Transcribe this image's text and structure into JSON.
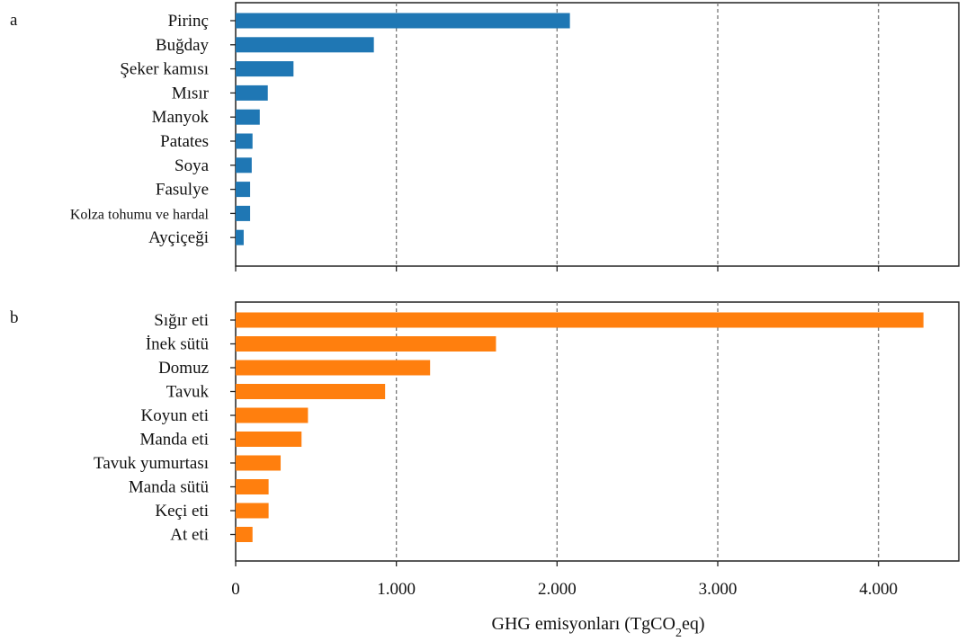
{
  "chart_data": [
    {
      "type": "bar",
      "orientation": "horizontal",
      "panel_label": "a",
      "categories": [
        "Pirinç",
        "Buğday",
        "Şeker kamısı",
        "Mısır",
        "Manyok",
        "Patates",
        "Soya",
        "Fasulye",
        "Kolza tohumu ve hardal",
        "Ayçiçeği"
      ],
      "values": [
        2080,
        860,
        360,
        200,
        150,
        105,
        100,
        90,
        90,
        50
      ],
      "bar_color": "#1f77b4",
      "xlim": [
        0,
        4500
      ],
      "grid": "vertical dashed at major ticks"
    },
    {
      "type": "bar",
      "orientation": "horizontal",
      "panel_label": "b",
      "categories": [
        "Sığır eti",
        "İnek sütü",
        "Domuz",
        "Tavuk",
        "Koyun eti",
        "Manda eti",
        "Tavuk yumurtası",
        "Manda sütü",
        "Keçi eti",
        "At eti"
      ],
      "values": [
        4280,
        1620,
        1210,
        930,
        450,
        410,
        280,
        205,
        205,
        105
      ],
      "bar_color": "#ff7f0e",
      "xlim": [
        0,
        4500
      ],
      "grid": "vertical dashed at major ticks",
      "xticks": [
        0,
        1000,
        2000,
        3000,
        4000
      ],
      "xtick_labels": [
        "0",
        "1.000",
        "2.000",
        "3.000",
        "4.000"
      ],
      "xlabel_main": "GHG emisyonları (TgCO",
      "xlabel_sub": "2",
      "xlabel_tail": "eq)"
    }
  ]
}
